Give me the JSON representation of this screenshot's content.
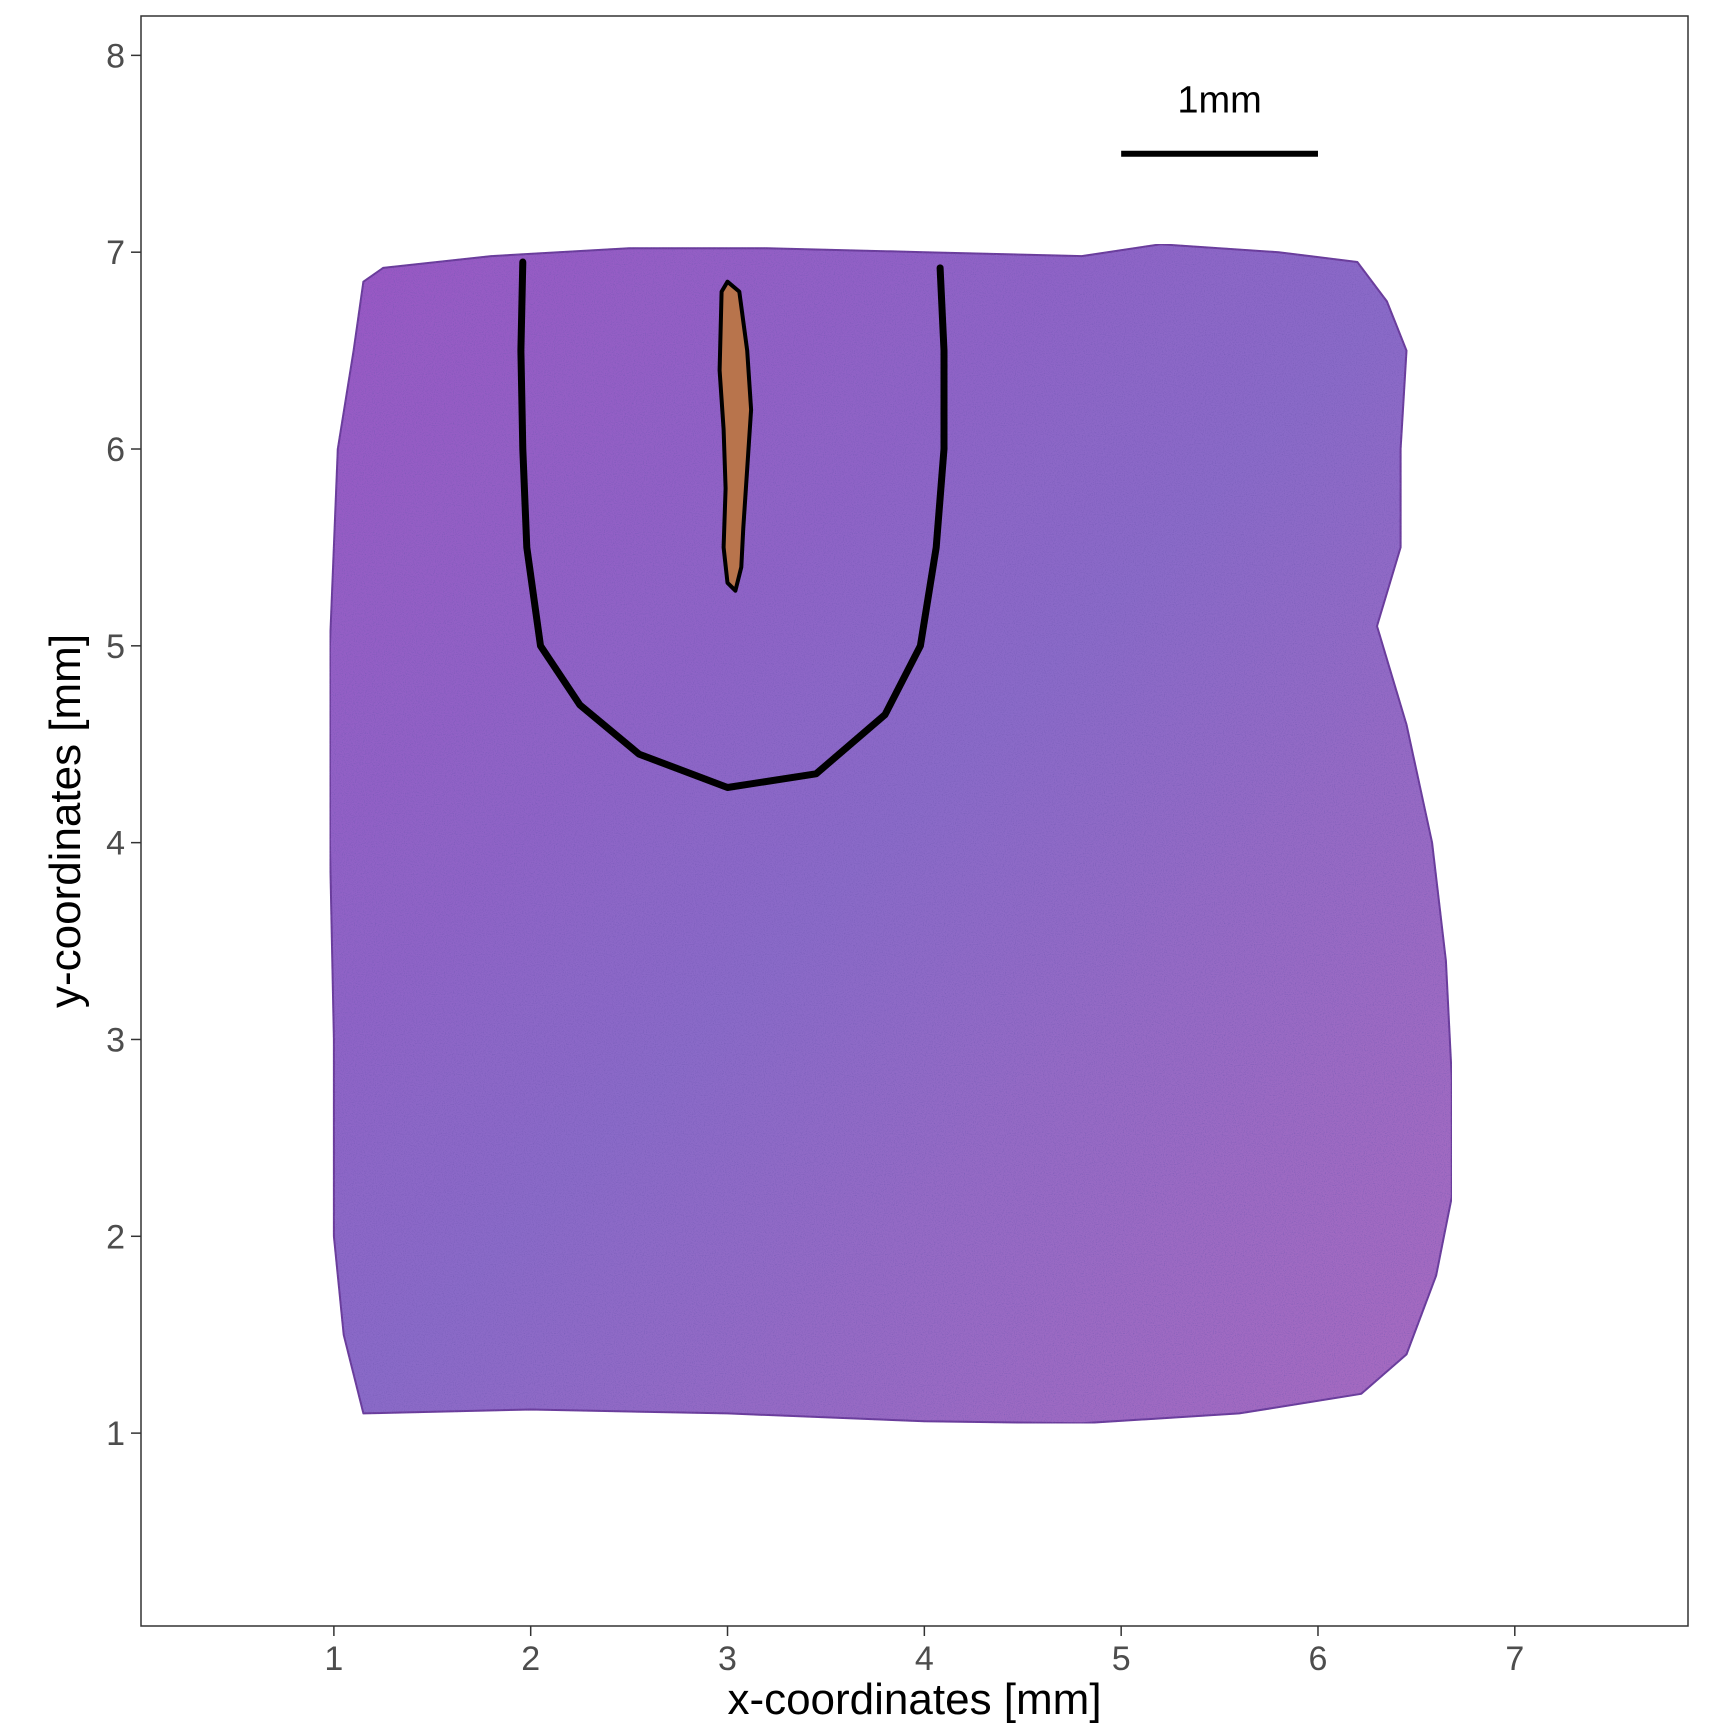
{
  "chart_data": {
    "type": "image-plot",
    "title": "",
    "xlabel": "x-coordinates [mm]",
    "ylabel": "y-coordinates [mm]",
    "xlim": [
      0.02,
      7.88
    ],
    "ylim": [
      0.02,
      8.2
    ],
    "x_ticks": [
      1,
      2,
      3,
      4,
      5,
      6,
      7
    ],
    "y_ticks": [
      1,
      2,
      3,
      4,
      5,
      6,
      7,
      8
    ],
    "grid": false,
    "scale_bar": {
      "label": "1mm",
      "x_start": 5.0,
      "x_end": 6.0,
      "y": 7.5,
      "label_y": 7.78
    },
    "tissue_outline": {
      "fill_color": "#8a5ab8",
      "points": [
        [
          1.15,
          6.85
        ],
        [
          1.25,
          6.92
        ],
        [
          1.8,
          6.98
        ],
        [
          2.5,
          7.02
        ],
        [
          3.2,
          7.02
        ],
        [
          4.0,
          7.0
        ],
        [
          4.8,
          6.98
        ],
        [
          5.2,
          7.04
        ],
        [
          5.8,
          7.0
        ],
        [
          6.2,
          6.95
        ],
        [
          6.35,
          6.75
        ],
        [
          6.45,
          6.5
        ],
        [
          6.42,
          6.0
        ],
        [
          6.42,
          5.5
        ],
        [
          6.3,
          5.1
        ],
        [
          6.45,
          4.6
        ],
        [
          6.58,
          4.0
        ],
        [
          6.65,
          3.4
        ],
        [
          6.68,
          2.8
        ],
        [
          6.68,
          2.2
        ],
        [
          6.6,
          1.8
        ],
        [
          6.45,
          1.4
        ],
        [
          6.22,
          1.2
        ],
        [
          5.6,
          1.1
        ],
        [
          4.8,
          1.05
        ],
        [
          4.0,
          1.06
        ],
        [
          3.0,
          1.1
        ],
        [
          2.0,
          1.12
        ],
        [
          1.15,
          1.1
        ],
        [
          1.05,
          1.5
        ],
        [
          1.0,
          2.0
        ],
        [
          1.0,
          3.0
        ],
        [
          0.98,
          4.0
        ],
        [
          0.98,
          5.0
        ],
        [
          1.02,
          6.0
        ],
        [
          1.1,
          6.5
        ]
      ]
    },
    "u_boundary": {
      "stroke_color": "#000000",
      "points": [
        [
          1.96,
          6.95
        ],
        [
          1.95,
          6.5
        ],
        [
          1.96,
          6.0
        ],
        [
          1.98,
          5.5
        ],
        [
          2.05,
          5.0
        ],
        [
          2.25,
          4.7
        ],
        [
          2.55,
          4.45
        ],
        [
          3.0,
          4.28
        ],
        [
          3.45,
          4.35
        ],
        [
          3.8,
          4.65
        ],
        [
          3.98,
          5.0
        ],
        [
          4.06,
          5.5
        ],
        [
          4.1,
          6.0
        ],
        [
          4.1,
          6.5
        ],
        [
          4.08,
          6.92
        ]
      ]
    },
    "brown_region": {
      "fill_color": "#b8744c",
      "points": [
        [
          2.97,
          6.8
        ],
        [
          3.0,
          6.85
        ],
        [
          3.06,
          6.8
        ],
        [
          3.1,
          6.5
        ],
        [
          3.12,
          6.2
        ],
        [
          3.1,
          5.9
        ],
        [
          3.08,
          5.6
        ],
        [
          3.07,
          5.4
        ],
        [
          3.04,
          5.28
        ],
        [
          3.0,
          5.32
        ],
        [
          2.98,
          5.5
        ],
        [
          2.99,
          5.8
        ],
        [
          2.98,
          6.1
        ],
        [
          2.96,
          6.4
        ],
        [
          2.97,
          6.8
        ]
      ]
    }
  }
}
